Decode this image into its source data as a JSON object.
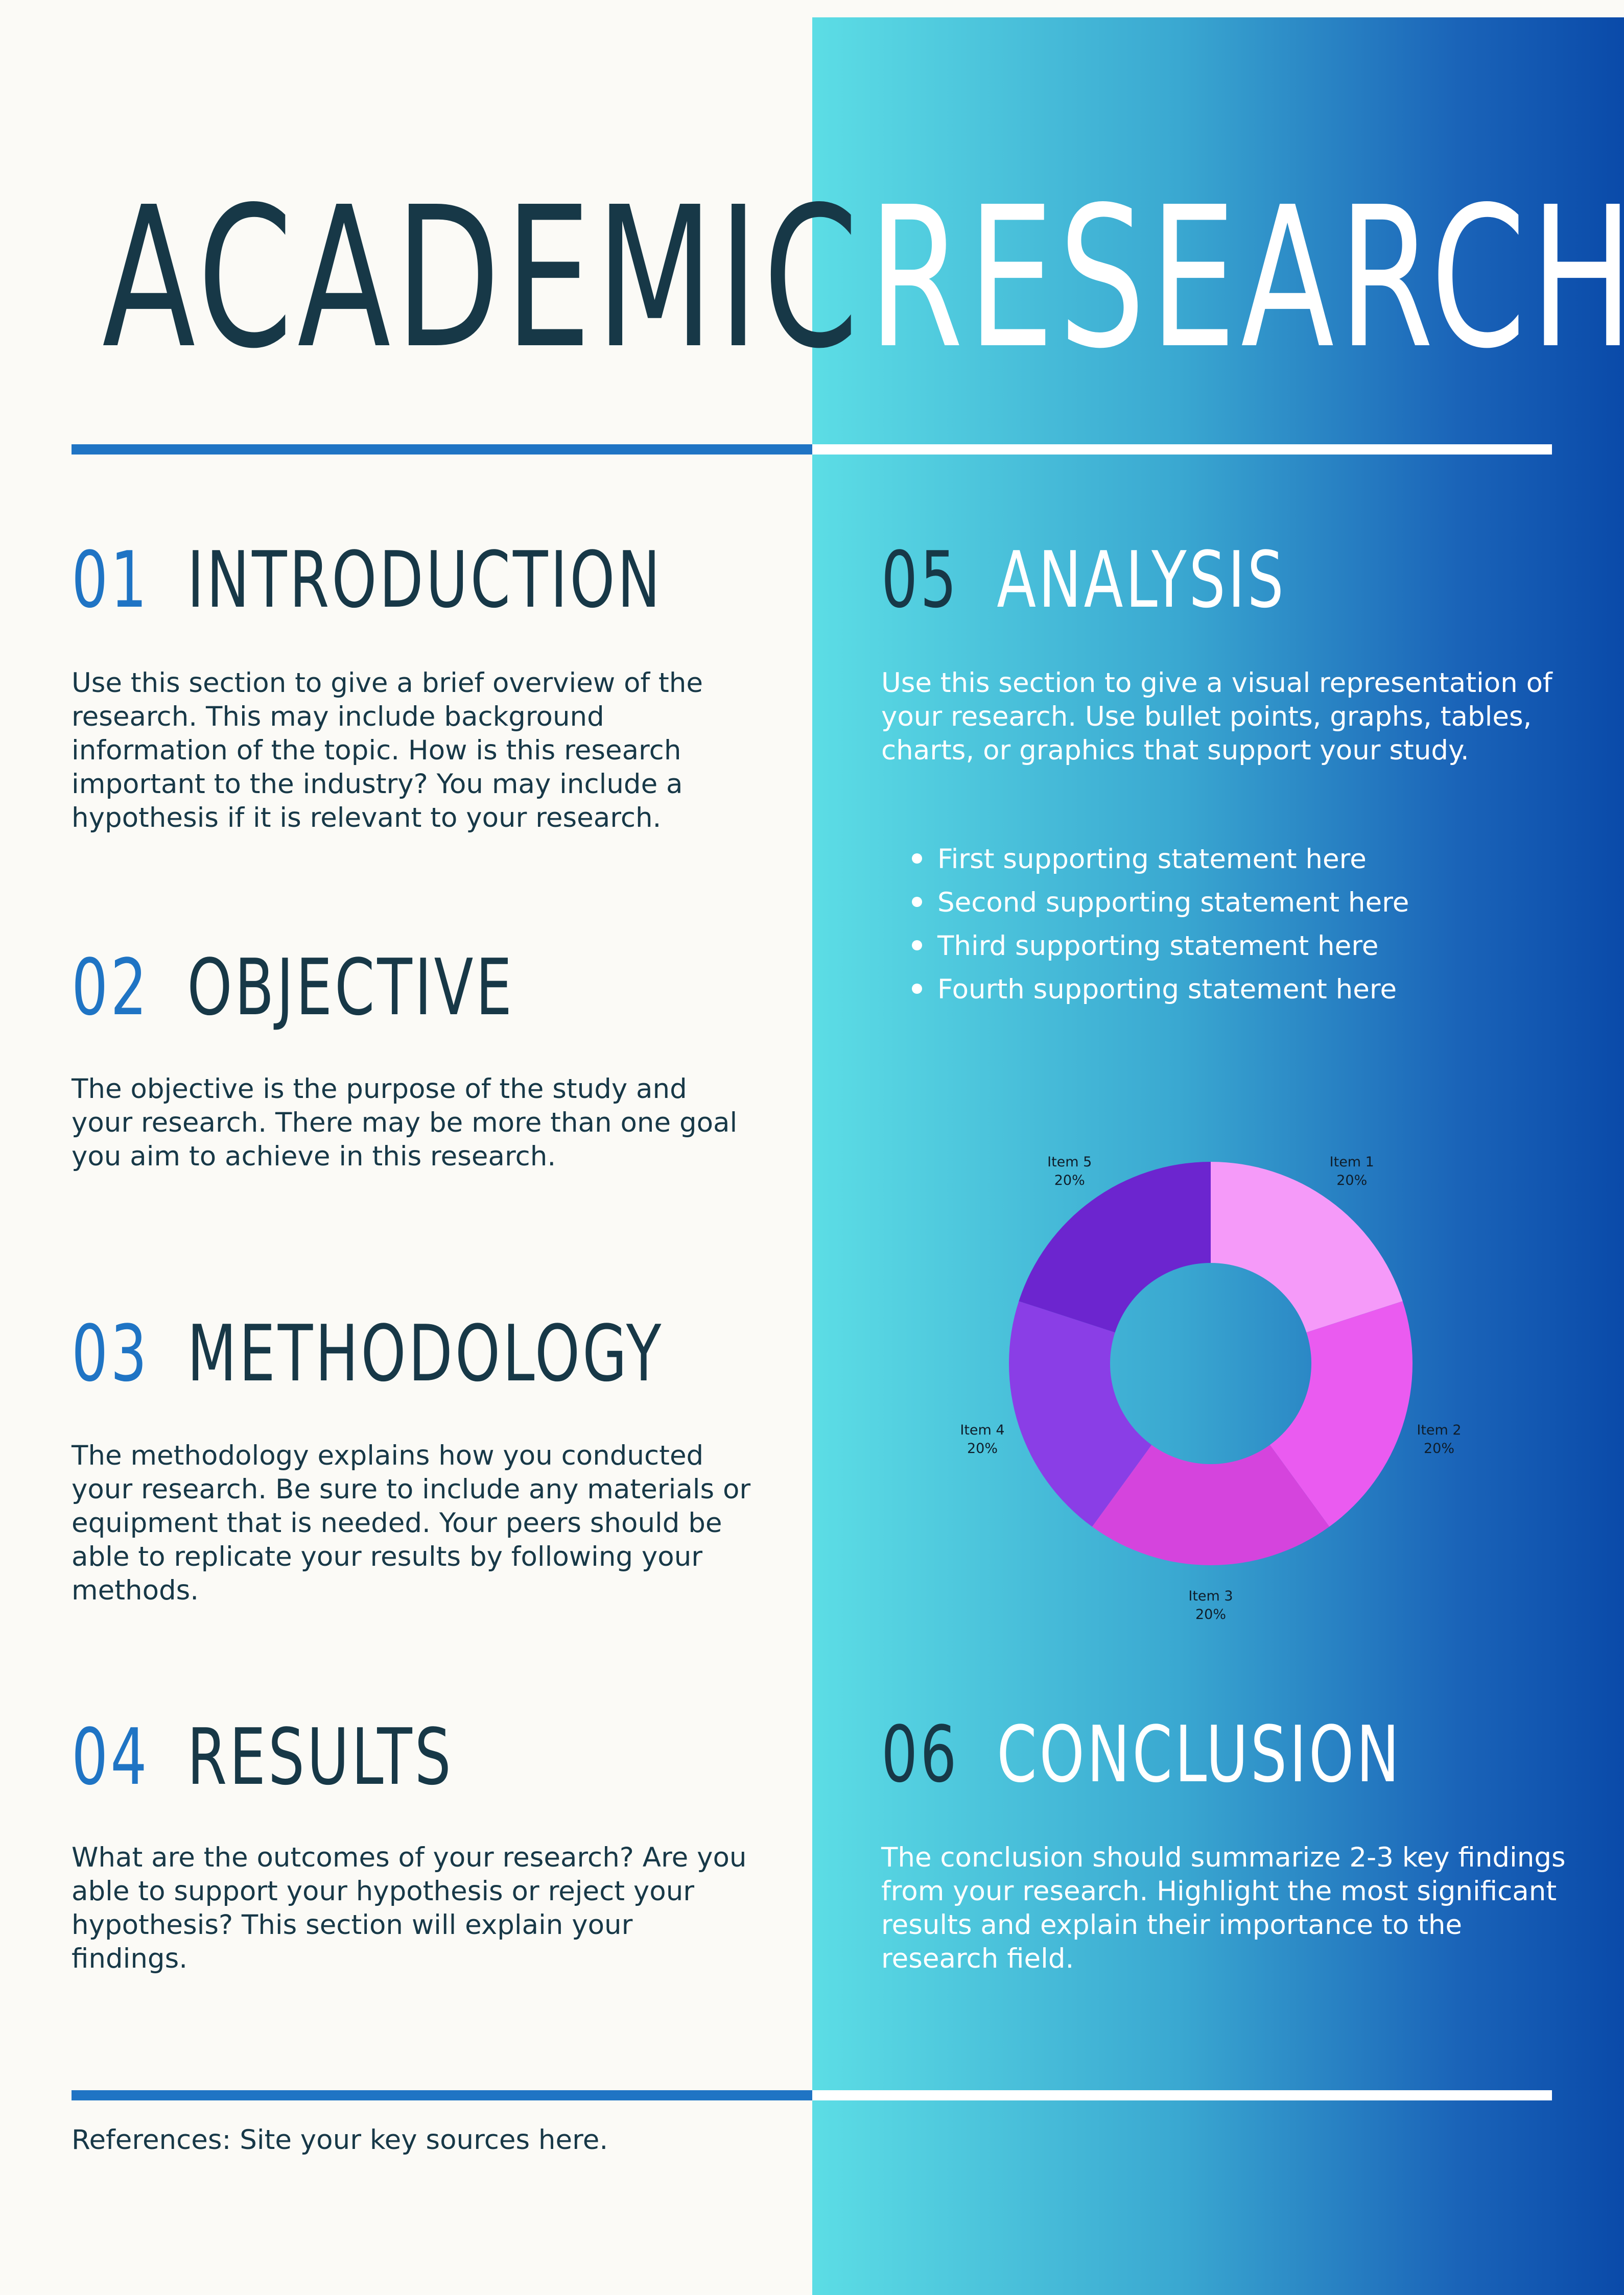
{
  "title": {
    "left": "ACADEMIC",
    "right": "RESEARCH"
  },
  "sections": {
    "introduction": {
      "number": "01",
      "title": "INTRODUCTION",
      "body": "Use this section to give a brief overview of the research. This may include background information of the topic. How is this research important to the industry? You may include a hypothesis if it is relevant to your research."
    },
    "objective": {
      "number": "02",
      "title": "OBJECTIVE",
      "body": "The objective is the purpose of the study and your research. There may be more than one goal you aim to achieve in this research."
    },
    "methodology": {
      "number": "03",
      "title": "METHODOLOGY",
      "body": "The methodology explains how you conducted your research. Be sure to include any materials or equipment that is needed. Your peers should be able to replicate your results by following your methods."
    },
    "results": {
      "number": "04",
      "title": "RESULTS",
      "body": "What are the outcomes of your research? Are you able to support your hypothesis or reject your hypothesis? This section will explain your findings."
    },
    "analysis": {
      "number": "05",
      "title": "ANALYSIS",
      "body": "Use this section to give a visual representation of your research. Use bullet points, graphs, tables, charts, or graphics that support your study.",
      "bullets": [
        "First supporting statement here",
        "Second supporting statement here",
        "Third supporting statement here",
        "Fourth supporting statement here"
      ]
    },
    "conclusion": {
      "number": "06",
      "title": "CONCLUSION",
      "body": "The conclusion should summarize 2-3 key findings from your research. Highlight the most significant results and explain their importance to the research field."
    }
  },
  "references": "References: Site your key sources here.",
  "chart_data": {
    "type": "pie",
    "donut": true,
    "categories": [
      "Item 1",
      "Item 2",
      "Item 3",
      "Item 4",
      "Item 5"
    ],
    "values": [
      20,
      20,
      20,
      20,
      20
    ],
    "value_labels": [
      "20%",
      "20%",
      "20%",
      "20%",
      "20%"
    ],
    "colors": [
      "#f59af9",
      "#ea5bf0",
      "#d544dd",
      "#8a3ee6",
      "#6c25cf"
    ]
  }
}
